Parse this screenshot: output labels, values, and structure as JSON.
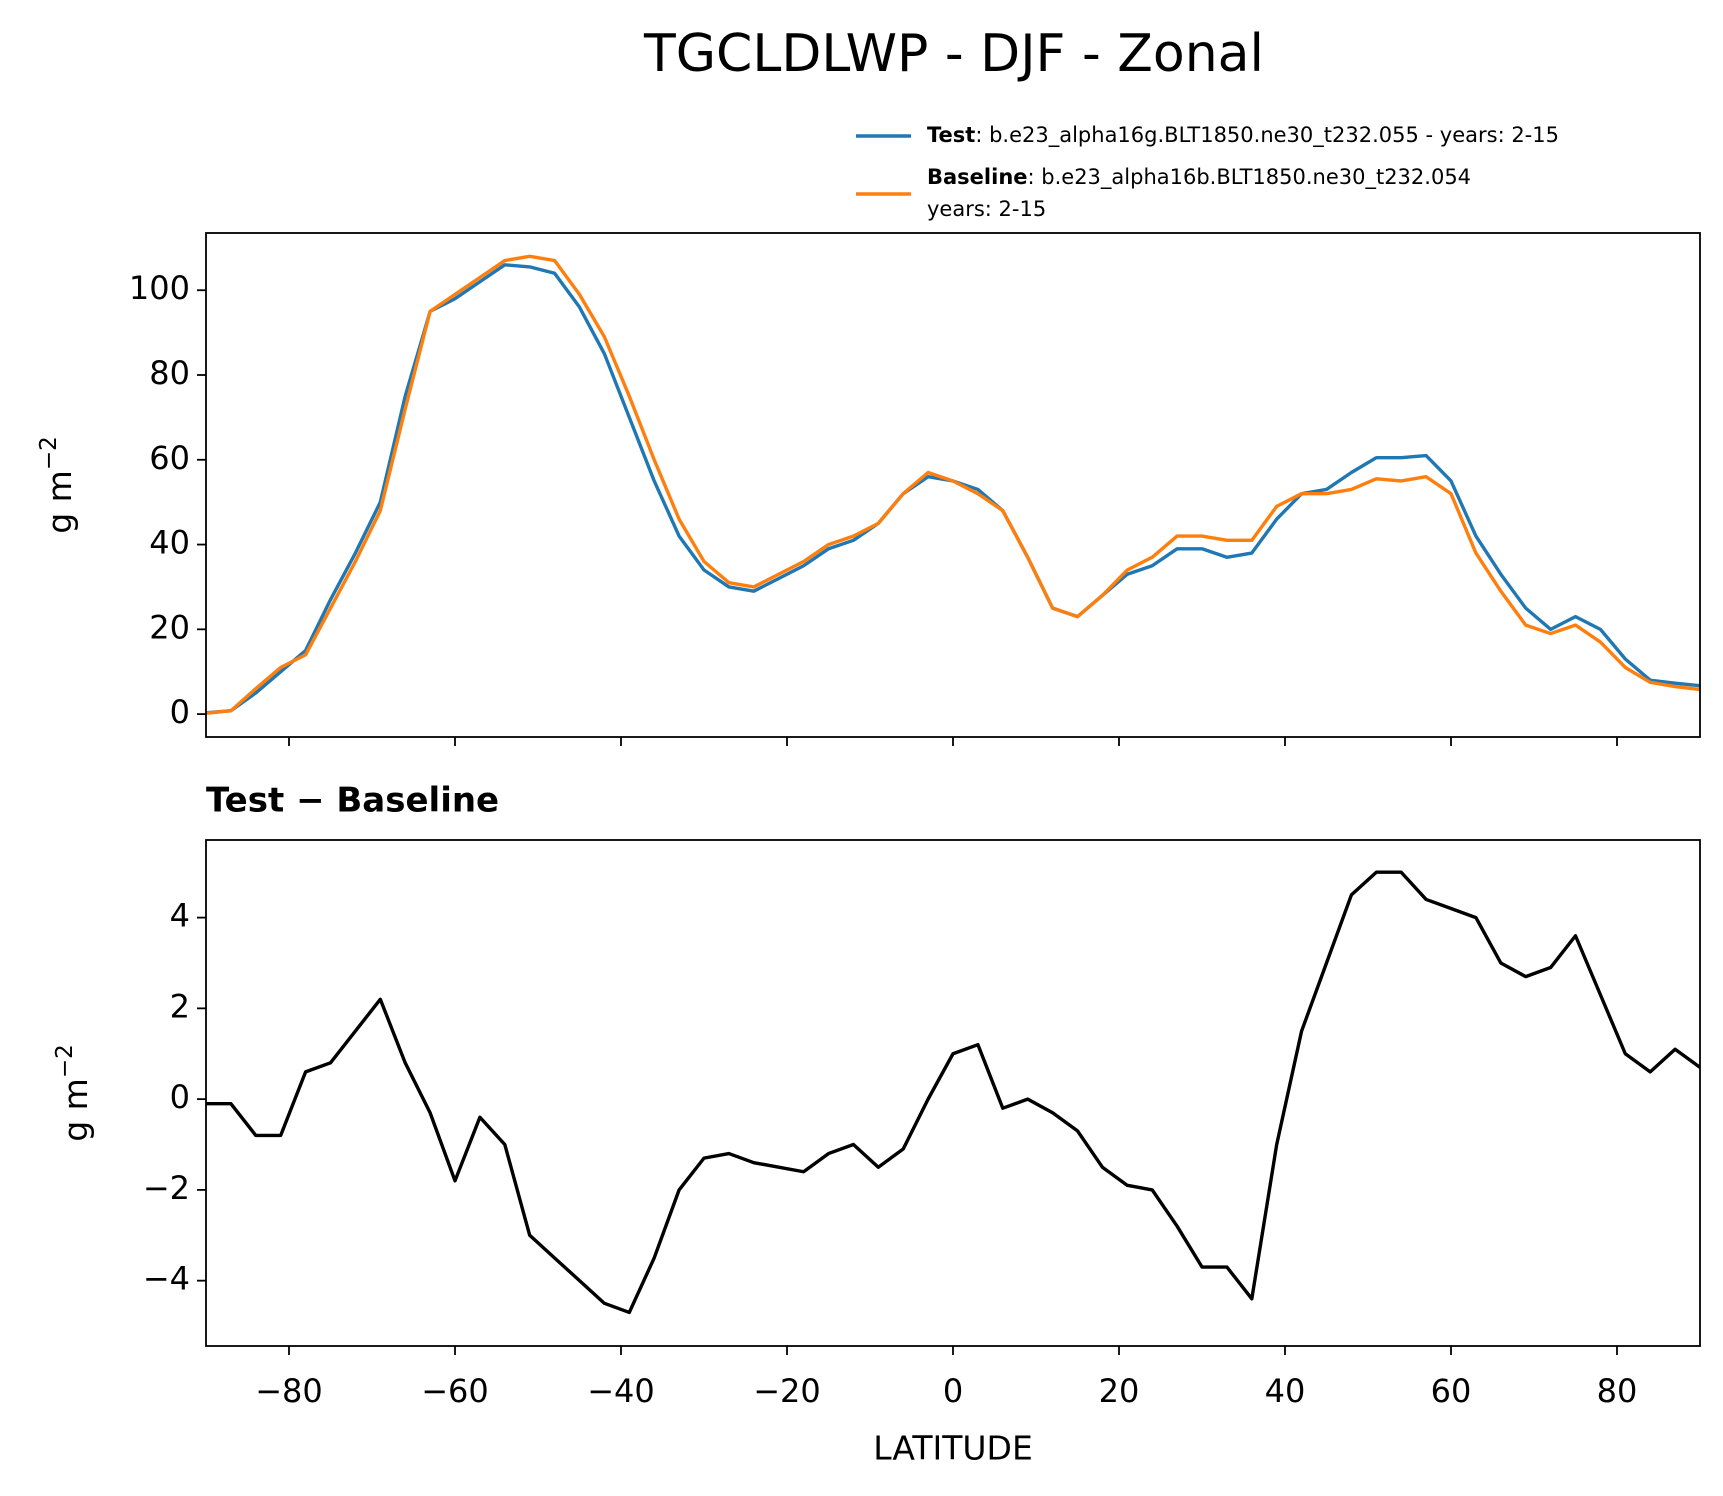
{
  "chart_data": [
    {
      "type": "line",
      "title": "TGCLDLWP - DJF - Zonal",
      "ylabel": "g m",
      "ylabel_exp": "−2",
      "xlim": [
        -90,
        90
      ],
      "xticks": [
        -80,
        -60,
        -40,
        -20,
        0,
        20,
        40,
        60,
        80
      ],
      "ylim": [
        -5.4,
        113.5
      ],
      "yticks": [
        0,
        20,
        40,
        60,
        80,
        100
      ],
      "x": [
        -90,
        -87,
        -84,
        -81,
        -78,
        -75,
        -72,
        -69,
        -66,
        -63,
        -60,
        -57,
        -54,
        -51,
        -48,
        -45,
        -42,
        -39,
        -36,
        -33,
        -30,
        -27,
        -24,
        -21,
        -18,
        -15,
        -12,
        -9,
        -6,
        -3,
        0,
        3,
        6,
        9,
        12,
        15,
        18,
        21,
        24,
        27,
        30,
        33,
        36,
        39,
        42,
        45,
        48,
        51,
        54,
        57,
        60,
        63,
        66,
        69,
        72,
        75,
        78,
        81,
        84,
        87,
        90
      ],
      "series": [
        {
          "name": "Test",
          "label_lines": [
            ": b.e23_alpha16g.BLT1850.ne30_t232.055 - years: 2-15"
          ],
          "color": "#1f77b4",
          "values": [
            0.3,
            0.8,
            5,
            10,
            15,
            27,
            38,
            50,
            75,
            95,
            98,
            102,
            106,
            105.5,
            104,
            96,
            85,
            70,
            55,
            42,
            34,
            30,
            29,
            32,
            35,
            39,
            41,
            45,
            52,
            56,
            55,
            53,
            48,
            37,
            25,
            23,
            28,
            33,
            35,
            39,
            39,
            37,
            38,
            46,
            52,
            53,
            57,
            60.5,
            60.5,
            61,
            55,
            42,
            33,
            25,
            20,
            23,
            20,
            13,
            8,
            7.3,
            6.7
          ]
        },
        {
          "name": "Baseline",
          "label_lines": [
            ": b.e23_alpha16b.BLT1850.ne30_t232.054",
            "years: 2-15"
          ],
          "color": "#ff7f0e",
          "values": [
            0.2,
            0.8,
            6,
            11,
            14,
            25,
            36,
            48,
            72,
            95,
            99,
            103,
            107,
            108,
            107,
            99,
            89,
            75,
            60,
            46,
            36,
            31,
            30,
            33,
            36,
            40,
            42,
            45,
            52,
            57,
            55,
            52,
            48,
            37,
            25,
            23,
            28,
            34,
            37,
            42,
            42,
            41,
            41,
            49,
            52,
            52,
            53,
            55.5,
            55,
            56,
            52,
            38,
            29,
            21,
            19,
            21,
            17,
            11,
            7.5,
            6.5,
            5.8
          ]
        }
      ]
    },
    {
      "type": "line",
      "title": "Test − Baseline",
      "ylabel": "g m",
      "ylabel_exp": "−2",
      "xlabel": "LATITUDE",
      "xlim": [
        -90,
        90
      ],
      "xticks": [
        {
          "value": -80,
          "label": "−80"
        },
        {
          "value": -60,
          "label": "−60"
        },
        {
          "value": -40,
          "label": "−40"
        },
        {
          "value": -20,
          "label": "−20"
        },
        0,
        20,
        40,
        60,
        80
      ],
      "ylim": [
        -5.44,
        5.71
      ],
      "yticks": [
        {
          "value": -4,
          "label": "−4"
        },
        {
          "value": -2,
          "label": "−2"
        },
        0,
        2,
        4
      ],
      "x": [
        -90,
        -87,
        -84,
        -81,
        -78,
        -75,
        -72,
        -69,
        -66,
        -63,
        -60,
        -57,
        -54,
        -51,
        -48,
        -45,
        -42,
        -39,
        -36,
        -33,
        -30,
        -27,
        -24,
        -21,
        -18,
        -15,
        -12,
        -9,
        -6,
        -3,
        0,
        3,
        6,
        9,
        12,
        15,
        18,
        21,
        24,
        27,
        30,
        33,
        36,
        39,
        42,
        45,
        48,
        51,
        54,
        57,
        60,
        63,
        66,
        69,
        72,
        75,
        78,
        81,
        84,
        87,
        90
      ],
      "series": [
        {
          "color": "#000000",
          "values": [
            -0.1,
            -0.1,
            -0.8,
            -0.8,
            0.6,
            0.8,
            1.5,
            2.2,
            0.8,
            -0.3,
            -1.8,
            -0.4,
            -1.0,
            -3.0,
            -3.5,
            -4.0,
            -4.5,
            -4.7,
            -3.5,
            -2.0,
            -1.3,
            -1.2,
            -1.4,
            -1.5,
            -1.6,
            -1.2,
            -1.0,
            -1.5,
            -1.1,
            0,
            1.0,
            1.2,
            -0.2,
            0.0,
            -0.3,
            -0.7,
            -1.5,
            -1.9,
            -2.0,
            -2.8,
            -3.7,
            -3.7,
            -4.4,
            -1.0,
            1.5,
            3.0,
            4.5,
            5.0,
            5.0,
            4.4,
            4.2,
            4.0,
            3.0,
            2.7,
            2.9,
            3.6,
            2.3,
            1.0,
            0.6,
            1.1,
            0.7
          ]
        }
      ]
    }
  ]
}
